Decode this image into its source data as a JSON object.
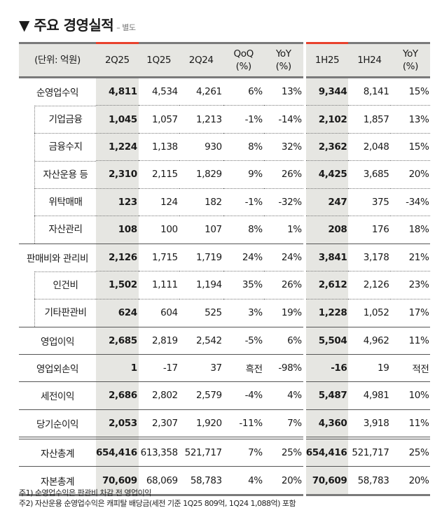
{
  "title": "▼ 주요 경영실적",
  "subtitle": "– 별도",
  "colors": {
    "accent": "#e8412c",
    "highlight": "#e6e6e2"
  },
  "headers": [
    "(단위: 억원)",
    "2Q25",
    "1Q25",
    "2Q24",
    "QoQ\n(%)",
    "YoY\n(%)",
    "1H25",
    "1H24",
    "YoY\n(%)"
  ],
  "rows": [
    {
      "label": "순영업수익",
      "sub": false,
      "v": [
        "4,811",
        "4,534",
        "4,261",
        "6%",
        "13%",
        "9,344",
        "8,141",
        "15%"
      ]
    },
    {
      "label": "기업금융",
      "sub": true,
      "v": [
        "1,045",
        "1,057",
        "1,213",
        "-1%",
        "-14%",
        "2,102",
        "1,857",
        "13%"
      ]
    },
    {
      "label": "금융수지",
      "sub": true,
      "v": [
        "1,224",
        "1,138",
        "930",
        "8%",
        "32%",
        "2,362",
        "2,048",
        "15%"
      ]
    },
    {
      "label": "자산운용 등",
      "sub": true,
      "v": [
        "2,310",
        "2,115",
        "1,829",
        "9%",
        "26%",
        "4,425",
        "3,685",
        "20%"
      ]
    },
    {
      "label": "위탁매매",
      "sub": true,
      "v": [
        "123",
        "124",
        "182",
        "-1%",
        "-32%",
        "247",
        "375",
        "-34%"
      ]
    },
    {
      "label": "자산관리",
      "sub": true,
      "v": [
        "108",
        "100",
        "107",
        "8%",
        "1%",
        "208",
        "176",
        "18%"
      ]
    },
    {
      "label": "판매비와 관리비",
      "sub": false,
      "v": [
        "2,126",
        "1,715",
        "1,719",
        "24%",
        "24%",
        "3,841",
        "3,178",
        "21%"
      ]
    },
    {
      "label": "인건비",
      "sub": true,
      "v": [
        "1,502",
        "1,111",
        "1,194",
        "35%",
        "26%",
        "2,612",
        "2,126",
        "23%"
      ]
    },
    {
      "label": "기타판관비",
      "sub": true,
      "v": [
        "624",
        "604",
        "525",
        "3%",
        "19%",
        "1,228",
        "1,052",
        "17%"
      ]
    },
    {
      "label": "영업이익",
      "sub": false,
      "v": [
        "2,685",
        "2,819",
        "2,542",
        "-5%",
        "6%",
        "5,504",
        "4,962",
        "11%"
      ]
    },
    {
      "label": "영업외손익",
      "sub": false,
      "v": [
        "1",
        "-17",
        "37",
        "흑전",
        "-98%",
        "-16",
        "19",
        "적전"
      ]
    },
    {
      "label": "세전이익",
      "sub": false,
      "v": [
        "2,686",
        "2,802",
        "2,579",
        "-4%",
        "4%",
        "5,487",
        "4,981",
        "10%"
      ]
    },
    {
      "label": "당기순이익",
      "sub": false,
      "v": [
        "2,053",
        "2,307",
        "1,920",
        "-11%",
        "7%",
        "4,360",
        "3,918",
        "11%"
      ]
    }
  ],
  "totals": [
    {
      "label": "자산총계",
      "v": [
        "654,416",
        "613,358",
        "521,717",
        "7%",
        "25%",
        "654,416",
        "521,717",
        "25%"
      ]
    },
    {
      "label": "자본총계",
      "v": [
        "70,609",
        "68,069",
        "58,783",
        "4%",
        "20%",
        "70,609",
        "58,783",
        "20%"
      ]
    }
  ],
  "notes": [
    "주1) 순영업수익은 판관비 차감 전 영업이익",
    "주2) 자산운용 순영업수익은 캐피탈 배당금(세전 기준 1Q25 809억, 1Q24 1,088억) 포함"
  ]
}
